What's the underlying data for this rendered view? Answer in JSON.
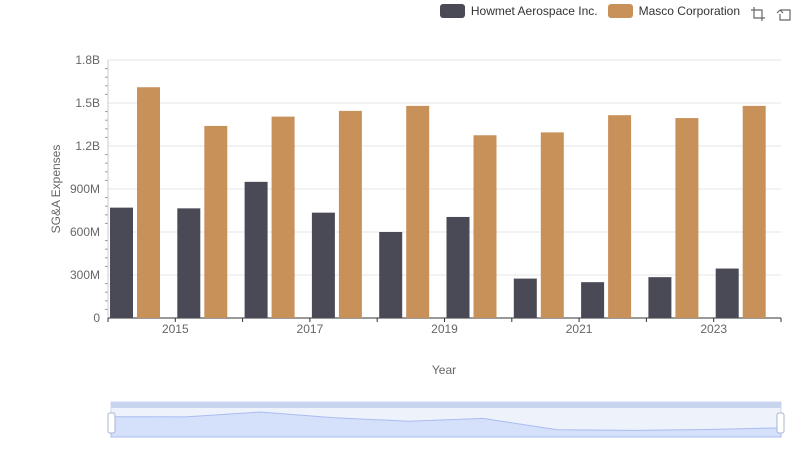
{
  "chart_data": {
    "type": "bar",
    "xlabel": "Year",
    "ylabel": "SG&A Expenses",
    "categories": [
      "2014",
      "2015",
      "2016",
      "2017",
      "2018",
      "2019",
      "2020",
      "2021",
      "2022",
      "2023"
    ],
    "x_tick_labels": [
      "2015",
      "2017",
      "2019",
      "2021",
      "2023"
    ],
    "y_ticks": [
      0,
      300000000,
      600000000,
      900000000,
      1200000000,
      1500000000,
      1800000000
    ],
    "y_tick_labels": [
      "0",
      "300M",
      "600M",
      "900M",
      "1.2B",
      "1.5B",
      "1.8B"
    ],
    "ylim": [
      0,
      1800000000
    ],
    "grid": true,
    "legend_position": "top-right",
    "series": [
      {
        "name": "Howmet Aerospace Inc.",
        "color": "#4a4a56",
        "values": [
          770000000,
          765000000,
          950000000,
          735000000,
          600000000,
          705000000,
          275000000,
          250000000,
          285000000,
          345000000
        ]
      },
      {
        "name": "Masco Corporation",
        "color": "#c9915a",
        "values": [
          1610000000,
          1340000000,
          1405000000,
          1445000000,
          1480000000,
          1275000000,
          1295000000,
          1415000000,
          1395000000,
          1480000000
        ]
      }
    ]
  },
  "toolbox": {
    "zoom_icon": "zoom-icon",
    "restore_icon": "restore-icon"
  }
}
